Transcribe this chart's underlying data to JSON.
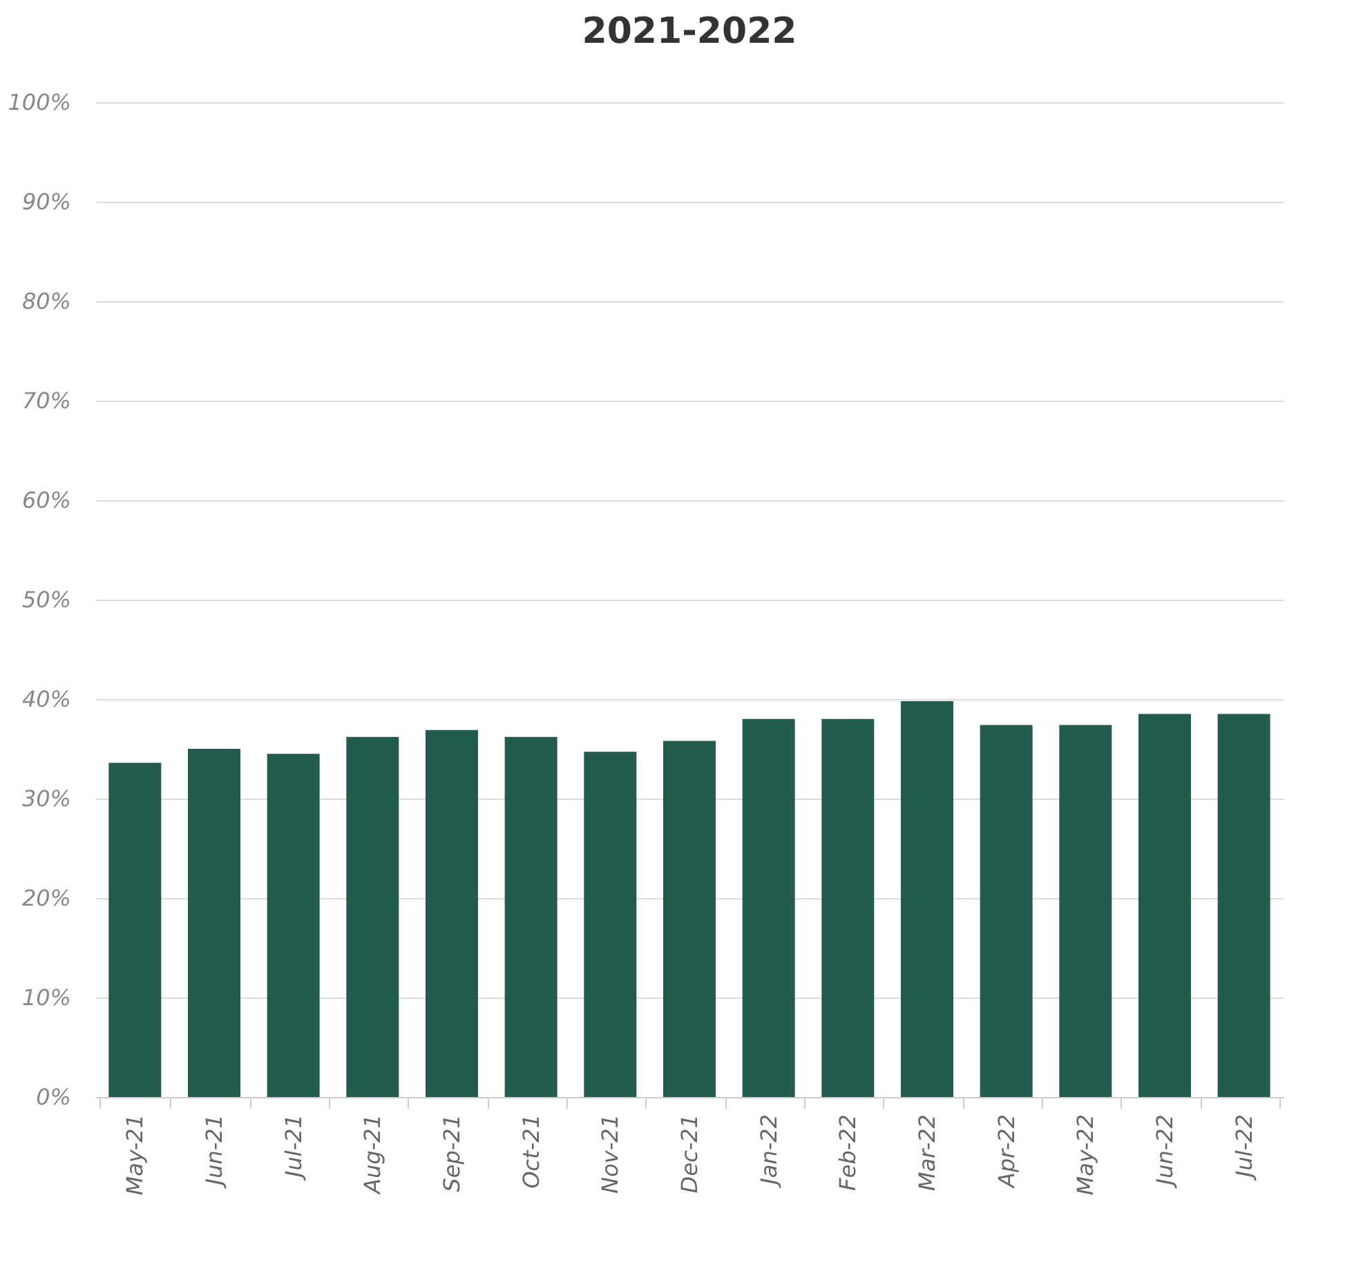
{
  "chart_data": {
    "type": "bar",
    "title": "2021-2022",
    "categories": [
      "May-21",
      "Jun-21",
      "Jul-21",
      "Aug-21",
      "Sep-21",
      "Oct-21",
      "Nov-21",
      "Dec-21",
      "Jan-22",
      "Feb-22",
      "Mar-22",
      "Apr-22",
      "May-22",
      "Jun-22",
      "Jul-22"
    ],
    "values": [
      33.6,
      35.0,
      34.5,
      36.2,
      36.9,
      36.2,
      34.7,
      35.8,
      38.0,
      38.0,
      39.8,
      37.4,
      37.4,
      38.5,
      38.5
    ],
    "color": "#235b4e",
    "ylim": [
      0,
      100
    ],
    "yticks": [
      {
        "value": 0,
        "label": "0%"
      },
      {
        "value": 10,
        "label": "10%"
      },
      {
        "value": 20,
        "label": "20%"
      },
      {
        "value": 30,
        "label": "30%"
      },
      {
        "value": 40,
        "label": "40%"
      },
      {
        "value": 50,
        "label": "50%"
      },
      {
        "value": 60,
        "label": "60%"
      },
      {
        "value": 70,
        "label": "70%"
      },
      {
        "value": 80,
        "label": "80%"
      },
      {
        "value": 90,
        "label": "90%"
      },
      {
        "value": 100,
        "label": "100%"
      }
    ],
    "grid": "y"
  }
}
